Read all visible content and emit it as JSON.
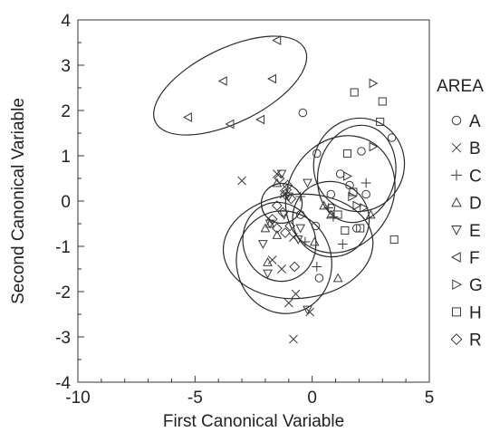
{
  "chart_data": {
    "type": "scatter",
    "xlabel": "First Canonical Variable",
    "ylabel": "Second Canonical Variable",
    "xlim": [
      -10,
      5
    ],
    "ylim": [
      -4,
      4
    ],
    "x_ticks": [
      -10,
      -5,
      0,
      5
    ],
    "y_ticks": [
      -4,
      -3,
      -2,
      -1,
      0,
      1,
      2,
      3,
      4
    ],
    "grid": false,
    "legend_title": "AREA",
    "legend_position": "right",
    "series": [
      {
        "name": "A",
        "marker": "circle",
        "points": [
          [
            -0.4,
            1.95
          ],
          [
            2.1,
            1.1
          ],
          [
            3.4,
            1.4
          ],
          [
            1.6,
            0.35
          ],
          [
            1.2,
            0.6
          ],
          [
            0.2,
            1.05
          ],
          [
            0.8,
            0.15
          ],
          [
            -0.5,
            -0.3
          ],
          [
            0.15,
            -0.55
          ],
          [
            0.8,
            -0.15
          ],
          [
            1.9,
            -0.6
          ],
          [
            2.3,
            0.15
          ],
          [
            0.3,
            -1.7
          ]
        ]
      },
      {
        "name": "B",
        "marker": "x",
        "points": [
          [
            -3,
            0.45
          ],
          [
            -1.5,
            0.6
          ],
          [
            -1.2,
            0.15
          ],
          [
            -0.8,
            -0.8
          ],
          [
            -1,
            -2.25
          ],
          [
            -0.7,
            -2.05
          ],
          [
            -0.1,
            -2.45
          ],
          [
            -0.8,
            -3.05
          ],
          [
            -1.7,
            -1.3
          ],
          [
            -1.3,
            -1.5
          ]
        ]
      },
      {
        "name": "C",
        "marker": "plus",
        "points": [
          [
            -0.5,
            0.1
          ],
          [
            0.7,
            -0.15
          ],
          [
            0.9,
            -0.35
          ],
          [
            1.3,
            -0.95
          ],
          [
            2.3,
            0.4
          ],
          [
            0.2,
            -1.45
          ],
          [
            -0.3,
            -0.9
          ]
        ]
      },
      {
        "name": "D",
        "marker": "triangle-up",
        "points": [
          [
            -1.8,
            -0.5
          ],
          [
            -1.5,
            -0.75
          ],
          [
            0.1,
            -0.9
          ],
          [
            0.5,
            -0.1
          ],
          [
            0.8,
            -0.3
          ],
          [
            2.5,
            -0.3
          ],
          [
            1.1,
            -1.7
          ],
          [
            -1.9,
            -1.35
          ],
          [
            -2,
            -0.6
          ],
          [
            -1.5,
            0.4
          ]
        ]
      },
      {
        "name": "E",
        "marker": "triangle-down",
        "points": [
          [
            -1.3,
            0.6
          ],
          [
            -1.8,
            -0.5
          ],
          [
            -2.1,
            -0.95
          ],
          [
            -1.9,
            -1.6
          ],
          [
            -1,
            0.1
          ],
          [
            -0.2,
            0.4
          ],
          [
            -0.2,
            -2.4
          ],
          [
            -0.6,
            -0.85
          ],
          [
            -1.2,
            -0.3
          ],
          [
            -0.5,
            -0.6
          ]
        ]
      },
      {
        "name": "F",
        "marker": "triangle-left",
        "points": [
          [
            -1.5,
            3.55
          ],
          [
            -3.8,
            2.65
          ],
          [
            -1.7,
            2.7
          ],
          [
            -3.5,
            1.7
          ],
          [
            -5.3,
            1.85
          ],
          [
            -2.2,
            1.8
          ]
        ]
      },
      {
        "name": "G",
        "marker": "triangle-right",
        "points": [
          [
            2.6,
            2.6
          ],
          [
            2.6,
            1.2
          ],
          [
            1.5,
            0.55
          ],
          [
            2.2,
            -0.15
          ],
          [
            1.9,
            -0.1
          ],
          [
            1.7,
            0.1
          ]
        ]
      },
      {
        "name": "H",
        "marker": "square",
        "points": [
          [
            1.8,
            2.4
          ],
          [
            3,
            2.2
          ],
          [
            2.9,
            1.75
          ],
          [
            1.5,
            1.05
          ],
          [
            1.75,
            0.2
          ],
          [
            1.1,
            -0.3
          ],
          [
            3.5,
            -0.85
          ],
          [
            1.4,
            -0.65
          ],
          [
            2.05,
            -0.6
          ]
        ]
      },
      {
        "name": "R",
        "marker": "diamond",
        "points": [
          [
            -1.4,
            0.5
          ],
          [
            -1.15,
            0.15
          ],
          [
            -1.5,
            -0.1
          ],
          [
            -1.25,
            -0.25
          ],
          [
            -1.1,
            0.25
          ],
          [
            -0.9,
            0.05
          ],
          [
            -1.7,
            -0.4
          ],
          [
            -0.95,
            -0.55
          ],
          [
            -0.75,
            -1.45
          ],
          [
            -1.15,
            -0.7
          ],
          [
            -1.05,
            0.35
          ],
          [
            -1.5,
            -0.6
          ]
        ]
      }
    ],
    "ellipses": [
      {
        "group": "F",
        "cx": -3.5,
        "cy": 2.55,
        "rx": 3.55,
        "ry": 0.82,
        "angle": 26
      },
      {
        "group": "A",
        "cx": 1.2,
        "cy": 0.15,
        "rx": 2.6,
        "ry": 1.15,
        "angle": 58
      },
      {
        "group": "H",
        "cx": 2.0,
        "cy": 0.8,
        "rx": 2.0,
        "ry": 1.0,
        "angle": 72
      },
      {
        "group": "G",
        "cx": 1.9,
        "cy": 0.6,
        "rx": 2.1,
        "ry": 0.85,
        "angle": 76
      },
      {
        "group": "C",
        "cx": 0.8,
        "cy": -0.4,
        "rx": 1.6,
        "ry": 0.85,
        "angle": 62
      },
      {
        "group": "D",
        "cx": -0.6,
        "cy": -1.0,
        "rx": 3.2,
        "ry": 1.15,
        "angle": 5
      },
      {
        "group": "B",
        "cx": -1.2,
        "cy": -1.35,
        "rx": 2.2,
        "ry": 1.05,
        "angle": -78
      },
      {
        "group": "E",
        "cx": -1.4,
        "cy": -0.9,
        "rx": 1.7,
        "ry": 0.8,
        "angle": -72
      },
      {
        "group": "R",
        "cx": -1.3,
        "cy": -0.05,
        "rx": 0.85,
        "ry": 0.45,
        "angle": -82
      }
    ]
  }
}
